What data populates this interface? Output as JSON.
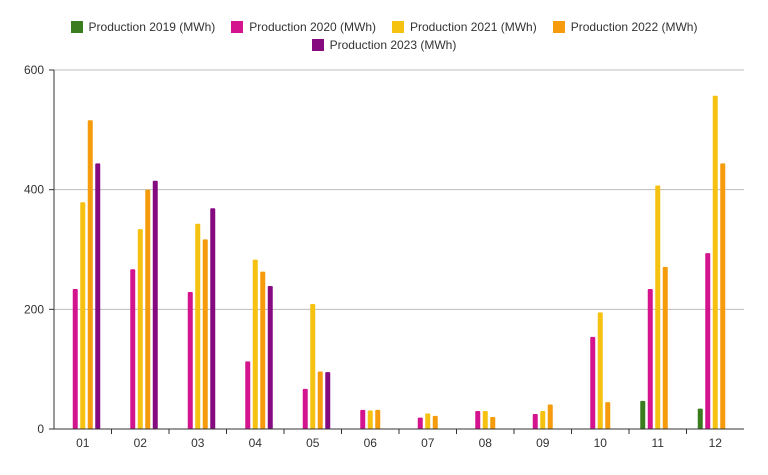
{
  "chart_data": {
    "type": "bar",
    "title": "",
    "xlabel": "",
    "ylabel": "",
    "ylim": [
      0,
      600
    ],
    "yticks": [
      0,
      200,
      400,
      600
    ],
    "grid": true,
    "legend_position": "top",
    "categories": [
      "01",
      "02",
      "03",
      "04",
      "05",
      "06",
      "07",
      "08",
      "09",
      "10",
      "11",
      "12"
    ],
    "series": [
      {
        "name": "Production 2019 (MWh)",
        "color": "#3a7d1f",
        "values": [
          null,
          null,
          null,
          null,
          null,
          null,
          null,
          null,
          null,
          null,
          47,
          34
        ]
      },
      {
        "name": "Production 2020 (MWh)",
        "color": "#d4148f",
        "values": [
          234,
          267,
          229,
          113,
          67,
          32,
          19,
          30,
          25,
          154,
          234,
          294
        ]
      },
      {
        "name": "Production 2021 (MWh)",
        "color": "#f5c211",
        "values": [
          379,
          334,
          343,
          283,
          209,
          31,
          26,
          30,
          30,
          195,
          407,
          557
        ]
      },
      {
        "name": "Production 2022 (MWh)",
        "color": "#f59b0c",
        "values": [
          516,
          400,
          317,
          263,
          96,
          32,
          22,
          20,
          41,
          45,
          271,
          444
        ]
      },
      {
        "name": "Production 2023 (MWh)",
        "color": "#850a80",
        "values": [
          444,
          415,
          369,
          239,
          95,
          null,
          null,
          null,
          null,
          null,
          null,
          null
        ]
      }
    ]
  }
}
